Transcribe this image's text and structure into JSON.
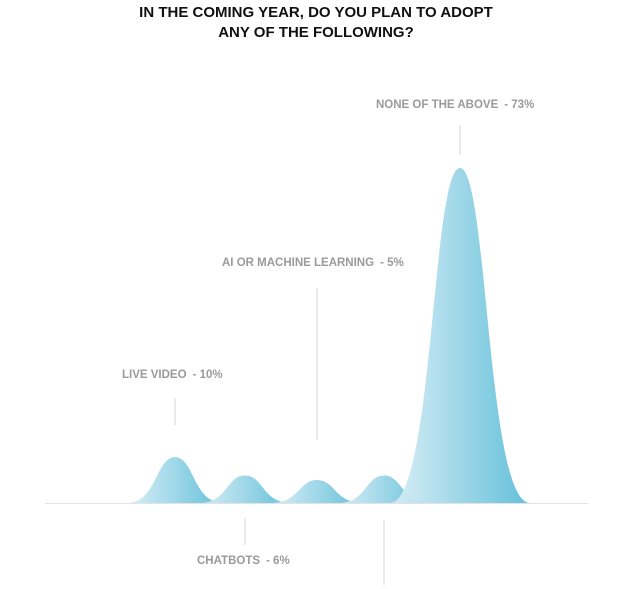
{
  "chart_data": {
    "type": "bell",
    "title": [
      "IN THE COMING YEAR, DO YOU PLAN TO ADOPT",
      "ANY OF THE FOLLOWING?"
    ],
    "categories": [
      "LIVE VIDEO",
      "CHATBOTS",
      "AI OR MACHINE LEARNING",
      null,
      "NONE OF THE ABOVE"
    ],
    "values": [
      10,
      6,
      5,
      6,
      73
    ],
    "value_labels": [
      "- 10%",
      "- 6%",
      "- 5%",
      null,
      "- 73%"
    ],
    "colors": [
      "#d8eef6",
      "#5bbcd8"
    ]
  }
}
